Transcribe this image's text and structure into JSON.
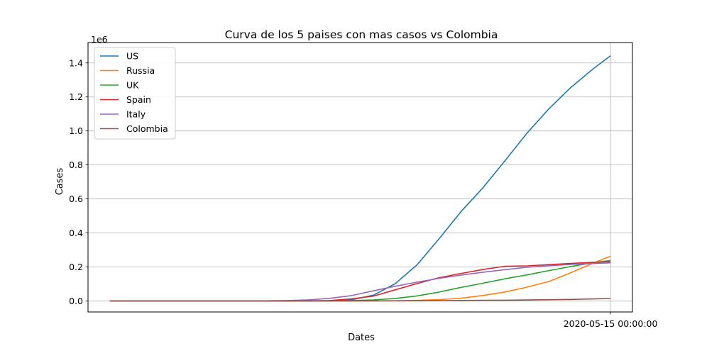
{
  "chart_data": {
    "type": "line",
    "title": "Curva de los 5 paises con mas casos vs Colombia",
    "xlabel": "Dates",
    "ylabel": "Cases",
    "y_offset_label": "1e6",
    "y_multiplier": 1000000,
    "ylim": [
      -0.065,
      1.52
    ],
    "yticks": [
      0.0,
      0.2,
      0.4,
      0.6,
      0.8,
      1.0,
      1.2,
      1.4
    ],
    "ytick_labels": [
      "0.0",
      "0.2",
      "0.4",
      "0.6",
      "0.8",
      "1.0",
      "1.2",
      "1.4"
    ],
    "x": [
      "2020-01-22",
      "2020-01-27",
      "2020-02-01",
      "2020-02-06",
      "2020-02-11",
      "2020-02-16",
      "2020-02-21",
      "2020-02-26",
      "2020-03-02",
      "2020-03-07",
      "2020-03-12",
      "2020-03-17",
      "2020-03-22",
      "2020-03-27",
      "2020-04-01",
      "2020-04-06",
      "2020-04-11",
      "2020-04-16",
      "2020-04-21",
      "2020-04-26",
      "2020-05-01",
      "2020-05-06",
      "2020-05-11",
      "2020-05-15"
    ],
    "xlim": [
      "2020-01-17",
      "2020-05-20"
    ],
    "xticks": [
      "2020-05-15"
    ],
    "xtick_labels": [
      "2020-05-15 00:00:00"
    ],
    "grid": true,
    "legend_position": "top-left",
    "series": [
      {
        "name": "US",
        "color": "#1f77b4",
        "values": [
          1e-06,
          5e-06,
          8e-06,
          1.2e-05,
          1.3e-05,
          1.5e-05,
          3.5e-05,
          6e-05,
          0.0001,
          0.0004,
          0.0017,
          0.0067,
          0.0338,
          0.1019,
          0.2139,
          0.3667,
          0.5267,
          0.6674,
          0.8255,
          0.9874,
          1.1313,
          1.2564,
          1.364,
          1.4424
        ]
      },
      {
        "name": "Russia",
        "color": "#ff7f0e",
        "values": [
          0.0,
          0.0,
          2e-06,
          2e-06,
          2e-06,
          2e-06,
          2e-06,
          2e-06,
          3e-06,
          1.3e-05,
          2.8e-05,
          0.000114,
          0.000367,
          0.001036,
          0.00284,
          0.007497,
          0.01577,
          0.032008,
          0.052763,
          0.080949,
          0.114431,
          0.165929,
          0.221344,
          0.262843
        ]
      },
      {
        "name": "UK",
        "color": "#2ca02c",
        "values": [
          0.0,
          0.0,
          2e-06,
          3e-06,
          8e-06,
          9e-06,
          9e-06,
          1.3e-05,
          4e-05,
          0.000209,
          0.000459,
          0.00196,
          0.005741,
          0.014745,
          0.029865,
          0.052279,
          0.079885,
          0.104145,
          0.130172,
          0.153136,
          0.178685,
          0.202359,
          0.224332,
          0.238004
        ]
      },
      {
        "name": "Spain",
        "color": "#d62728",
        "values": [
          0.0,
          0.0,
          1e-06,
          1e-06,
          2e-06,
          2e-06,
          2e-06,
          1.3e-05,
          0.00012,
          0.0005,
          0.002277,
          0.011748,
          0.028603,
          0.065719,
          0.102136,
          0.136675,
          0.161852,
          0.184948,
          0.204178,
          0.206,
          0.213435,
          0.220325,
          0.227436,
          0.230698
        ]
      },
      {
        "name": "Italy",
        "color": "#9467bd",
        "values": [
          0.0,
          0.0,
          2e-06,
          3e-06,
          3e-06,
          3e-06,
          2e-05,
          0.00047,
          0.002036,
          0.005883,
          0.015113,
          0.031506,
          0.059138,
          0.086498,
          0.110574,
          0.132547,
          0.152271,
          0.168941,
          0.183957,
          0.197675,
          0.207428,
          0.214457,
          0.219814,
          0.223885
        ]
      },
      {
        "name": "Colombia",
        "color": "#8c564b",
        "values": [
          0.0,
          0.0,
          0.0,
          0.0,
          0.0,
          0.0,
          0.0,
          0.0,
          0.0,
          1e-06,
          9e-06,
          7.5e-05,
          0.000231,
          0.000539,
          0.001065,
          0.001579,
          0.002709,
          0.003233,
          0.004149,
          0.005379,
          0.007006,
          0.008959,
          0.011613,
          0.014216
        ]
      }
    ]
  }
}
